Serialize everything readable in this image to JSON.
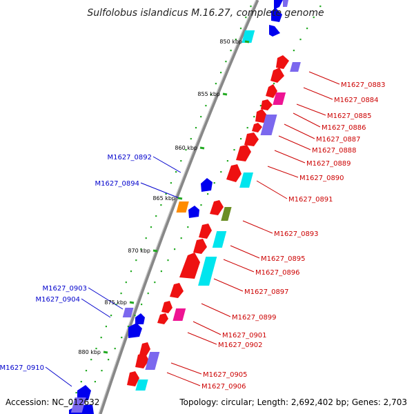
{
  "title": "Sulfolobus islandicus M.16.27, complete genome",
  "footer": {
    "accession": "Accession: NC_012632",
    "summary": "Topology: circular; Length: 2,692,402 bp; Genes: 2,703"
  },
  "colors": {
    "backbone": "#888888",
    "tick": "#22aa22",
    "forward_label": "#cc0000",
    "reverse_label": "#0000cc",
    "red": "#ee1111",
    "blue": "#0000ee",
    "cyan": "#00e5ee",
    "magenta": "#ee1493",
    "lavender": "#7b68ee",
    "orange": "#ff8c00",
    "olive": "#6b8e23"
  },
  "ticks": [
    {
      "label": "850 kbp"
    },
    {
      "label": "855 kbp"
    },
    {
      "label": "860 kbp"
    },
    {
      "label": "865 kbp"
    },
    {
      "label": "870 kbp"
    },
    {
      "label": "875 kbp"
    },
    {
      "label": "880 kbp"
    }
  ],
  "forward_labels": [
    "M1627_0883",
    "M1627_0884",
    "M1627_0885",
    "M1627_0886",
    "M1627_0887",
    "M1627_0888",
    "M1627_0889",
    "M1627_0890",
    "M1627_0891",
    "M1627_0893",
    "M1627_0895",
    "M1627_0896",
    "M1627_0897",
    "M1627_0899",
    "M1627_0901",
    "M1627_0902",
    "M1627_0905",
    "M1627_0906"
  ],
  "reverse_labels": [
    "M1627_0892",
    "M1627_0894",
    "M1627_0903",
    "M1627_0904",
    "M1627_0910"
  ]
}
